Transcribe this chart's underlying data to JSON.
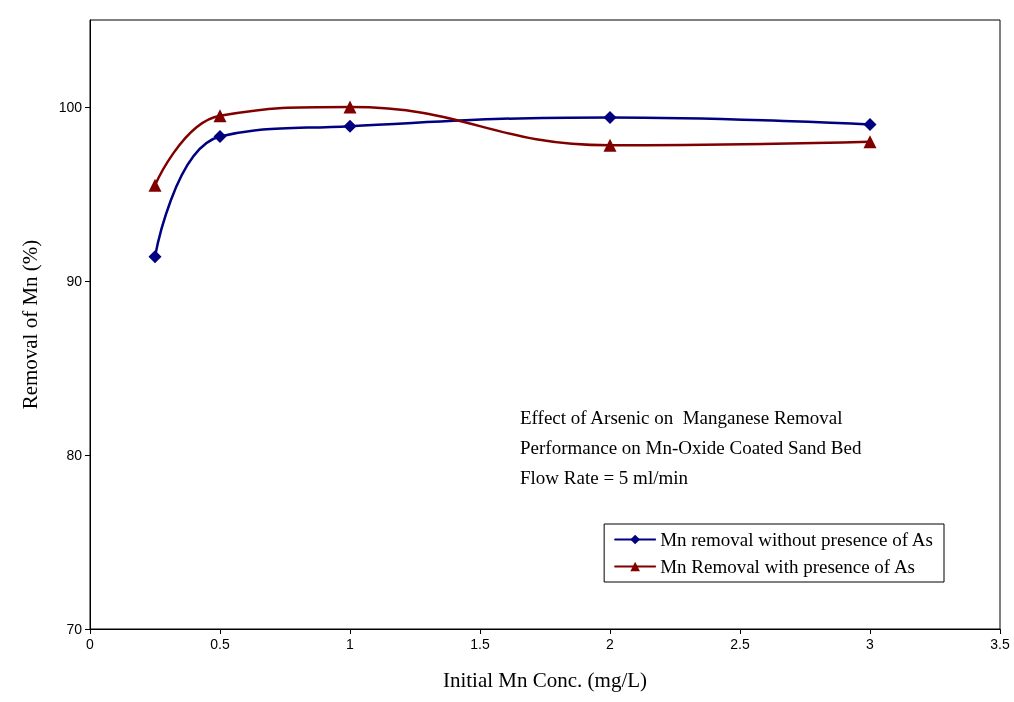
{
  "chart_data": {
    "type": "line",
    "xlabel": "Initial Mn Conc. (mg/L)",
    "ylabel": "Removal of Mn (%)",
    "annotations": [
      "Effect of Arsenic on  Manganese Removal",
      "Performance on Mn-Oxide Coated Sand Bed",
      "Flow Rate = 5 ml/min"
    ],
    "x": [
      0.25,
      0.5,
      1,
      2,
      3
    ],
    "series": [
      {
        "name": "Mn removal without presence of As",
        "color": "#000080",
        "marker": "diamond",
        "values": [
          91.4,
          98.3,
          98.9,
          99.4,
          99.0
        ]
      },
      {
        "name": "Mn Removal with presence of As",
        "color": "#800000",
        "marker": "triangle",
        "values": [
          95.5,
          99.5,
          100.0,
          97.8,
          98.0
        ]
      }
    ],
    "xlim": [
      0,
      3.5
    ],
    "xticks": [
      0,
      0.5,
      1,
      1.5,
      2,
      2.5,
      3,
      3.5
    ],
    "ylim": [
      70,
      105
    ],
    "yticks": [
      70,
      80,
      90,
      100
    ],
    "grid": false,
    "legend": "bottom right",
    "line_style": "solid"
  }
}
